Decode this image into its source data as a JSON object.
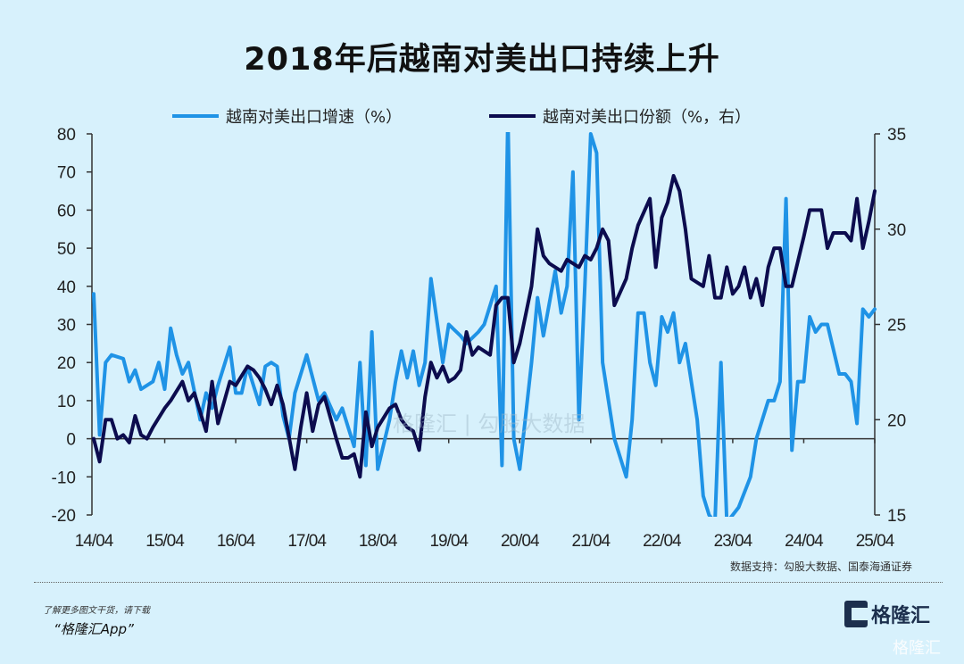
{
  "chart_data": {
    "type": "line",
    "title": "2018年后越南对美出口持续上升",
    "x_unit": "months since 2014/04",
    "x_ticks": [
      0,
      12,
      24,
      36,
      48,
      60,
      72,
      84,
      96,
      108,
      120,
      132
    ],
    "x_tick_labels": [
      "14/04",
      "15/04",
      "16/04",
      "17/04",
      "18/04",
      "19/04",
      "20/04",
      "21/04",
      "22/04",
      "23/04",
      "24/04",
      "25/04"
    ],
    "y_left": {
      "range": [
        -20,
        80
      ],
      "ticks": [
        -20,
        -10,
        0,
        10,
        20,
        30,
        40,
        50,
        60,
        70,
        80
      ]
    },
    "y_right": {
      "range": [
        15,
        35
      ],
      "ticks": [
        15,
        20,
        25,
        30,
        35
      ]
    },
    "legend_position": "top",
    "series": [
      {
        "name": "越南对美出口增速（%）",
        "axis": "left",
        "color": "#1f93e6",
        "points": [
          [
            0,
            38
          ],
          [
            1,
            1
          ],
          [
            2,
            20
          ],
          [
            3,
            22
          ],
          [
            5,
            21
          ],
          [
            6,
            15
          ],
          [
            7,
            18
          ],
          [
            8,
            13
          ],
          [
            10,
            15
          ],
          [
            11,
            20
          ],
          [
            12,
            13
          ],
          [
            13,
            29
          ],
          [
            14,
            22
          ],
          [
            15,
            17
          ],
          [
            16,
            20
          ],
          [
            18,
            5
          ],
          [
            19,
            12
          ],
          [
            20,
            8
          ],
          [
            21,
            14
          ],
          [
            23,
            24
          ],
          [
            24,
            12
          ],
          [
            25,
            12
          ],
          [
            26,
            19
          ],
          [
            28,
            9
          ],
          [
            29,
            19
          ],
          [
            30,
            20
          ],
          [
            31,
            19
          ],
          [
            32,
            6
          ],
          [
            33,
            0
          ],
          [
            34,
            12
          ],
          [
            36,
            22
          ],
          [
            38,
            10
          ],
          [
            39,
            12
          ],
          [
            41,
            5
          ],
          [
            42,
            8
          ],
          [
            44,
            -2
          ],
          [
            45,
            20
          ],
          [
            46,
            -7
          ],
          [
            47,
            28
          ],
          [
            48,
            -8
          ],
          [
            50,
            5
          ],
          [
            51,
            15
          ],
          [
            52,
            23
          ],
          [
            53,
            16
          ],
          [
            54,
            23
          ],
          [
            55,
            14
          ],
          [
            56,
            20
          ],
          [
            57,
            42
          ],
          [
            59,
            20
          ],
          [
            60,
            30
          ],
          [
            62,
            27
          ],
          [
            63,
            25
          ],
          [
            65,
            28
          ],
          [
            66,
            30
          ],
          [
            68,
            40
          ],
          [
            69,
            -7
          ],
          [
            70,
            85
          ],
          [
            71,
            0
          ],
          [
            72,
            -8
          ],
          [
            74,
            20
          ],
          [
            75,
            37
          ],
          [
            76,
            27
          ],
          [
            78,
            44
          ],
          [
            79,
            33
          ],
          [
            80,
            40
          ],
          [
            81,
            70
          ],
          [
            82,
            5
          ],
          [
            83,
            40
          ],
          [
            84,
            80
          ],
          [
            85,
            75
          ],
          [
            86,
            20
          ],
          [
            88,
            0
          ],
          [
            90,
            -10
          ],
          [
            91,
            5
          ],
          [
            92,
            33
          ],
          [
            93,
            33
          ],
          [
            94,
            20
          ],
          [
            95,
            14
          ],
          [
            96,
            32
          ],
          [
            97,
            28
          ],
          [
            98,
            33
          ],
          [
            99,
            20
          ],
          [
            100,
            25
          ],
          [
            102,
            5
          ],
          [
            103,
            -15
          ],
          [
            104,
            -20
          ],
          [
            105,
            -22
          ],
          [
            106,
            20
          ],
          [
            107,
            -22
          ],
          [
            108,
            -20
          ],
          [
            109,
            -18
          ],
          [
            111,
            -10
          ],
          [
            112,
            0
          ],
          [
            114,
            10
          ],
          [
            115,
            10
          ],
          [
            116,
            15
          ],
          [
            117,
            63
          ],
          [
            118,
            -3
          ],
          [
            119,
            15
          ],
          [
            120,
            15
          ],
          [
            121,
            32
          ],
          [
            122,
            28
          ],
          [
            123,
            30
          ],
          [
            124,
            30
          ],
          [
            126,
            17
          ],
          [
            127,
            17
          ],
          [
            128,
            15
          ],
          [
            129,
            4
          ],
          [
            130,
            34
          ],
          [
            131,
            32
          ],
          [
            132,
            34
          ]
        ]
      },
      {
        "name": "越南对美出口份额（%，右）",
        "axis": "right",
        "color": "#0c0c4e",
        "points": [
          [
            0,
            19
          ],
          [
            1,
            17.8
          ],
          [
            2,
            20
          ],
          [
            3,
            20
          ],
          [
            4,
            19
          ],
          [
            5,
            19.2
          ],
          [
            6,
            18.8
          ],
          [
            7,
            20.2
          ],
          [
            8,
            19.2
          ],
          [
            9,
            19
          ],
          [
            10,
            19.6
          ],
          [
            12,
            20.6
          ],
          [
            13,
            21
          ],
          [
            15,
            22
          ],
          [
            16,
            21
          ],
          [
            17,
            21.4
          ],
          [
            18,
            20.4
          ],
          [
            19,
            19.4
          ],
          [
            20,
            22
          ],
          [
            21,
            19.8
          ],
          [
            23,
            22
          ],
          [
            24,
            21.8
          ],
          [
            26,
            22.8
          ],
          [
            27,
            22.6
          ],
          [
            28,
            22.2
          ],
          [
            29,
            21.6
          ],
          [
            30,
            20.8
          ],
          [
            31,
            21.8
          ],
          [
            32,
            20.8
          ],
          [
            34,
            17.4
          ],
          [
            35,
            19.6
          ],
          [
            36,
            21.4
          ],
          [
            37,
            19.4
          ],
          [
            38,
            20.8
          ],
          [
            39,
            21.2
          ],
          [
            41,
            19
          ],
          [
            42,
            18
          ],
          [
            43,
            18
          ],
          [
            44,
            18.2
          ],
          [
            45,
            17
          ],
          [
            46,
            20.4
          ],
          [
            47,
            18.6
          ],
          [
            48,
            19.6
          ],
          [
            50,
            20.6
          ],
          [
            51,
            20.8
          ],
          [
            52,
            20
          ],
          [
            53,
            19.6
          ],
          [
            54,
            19.4
          ],
          [
            55,
            18.4
          ],
          [
            56,
            21.2
          ],
          [
            57,
            23
          ],
          [
            58,
            22.2
          ],
          [
            59,
            22.8
          ],
          [
            60,
            22
          ],
          [
            61,
            22.2
          ],
          [
            62,
            22.6
          ],
          [
            63,
            24.6
          ],
          [
            64,
            23.4
          ],
          [
            65,
            23.8
          ],
          [
            67,
            23.4
          ],
          [
            68,
            26
          ],
          [
            69,
            26.4
          ],
          [
            70,
            26.4
          ],
          [
            71,
            23
          ],
          [
            72,
            24
          ],
          [
            74,
            27
          ],
          [
            75,
            30
          ],
          [
            76,
            28.6
          ],
          [
            77,
            28.2
          ],
          [
            79,
            27.8
          ],
          [
            80,
            28.4
          ],
          [
            82,
            28
          ],
          [
            83,
            28.6
          ],
          [
            84,
            28.4
          ],
          [
            85,
            29
          ],
          [
            86,
            30
          ],
          [
            87,
            29.4
          ],
          [
            88,
            26
          ],
          [
            90,
            27.4
          ],
          [
            91,
            29
          ],
          [
            92,
            30.2
          ],
          [
            94,
            31.6
          ],
          [
            95,
            28
          ],
          [
            96,
            30.6
          ],
          [
            97,
            31.4
          ],
          [
            98,
            32.8
          ],
          [
            99,
            32
          ],
          [
            100,
            30
          ],
          [
            101,
            27.4
          ],
          [
            103,
            27
          ],
          [
            104,
            28.6
          ],
          [
            105,
            26.4
          ],
          [
            106,
            26.4
          ],
          [
            107,
            28
          ],
          [
            108,
            26.6
          ],
          [
            109,
            27
          ],
          [
            110,
            28
          ],
          [
            111,
            26.4
          ],
          [
            112,
            27.4
          ],
          [
            113,
            26
          ],
          [
            114,
            28
          ],
          [
            115,
            29
          ],
          [
            116,
            29
          ],
          [
            117,
            27
          ],
          [
            118,
            27
          ],
          [
            120,
            29.6
          ],
          [
            121,
            31
          ],
          [
            122,
            31
          ],
          [
            123,
            31
          ],
          [
            124,
            29
          ],
          [
            125,
            29.8
          ],
          [
            127,
            29.8
          ],
          [
            128,
            29.4
          ],
          [
            129,
            31.6
          ],
          [
            130,
            29
          ],
          [
            131,
            30.4
          ],
          [
            132,
            32
          ]
        ]
      }
    ],
    "source": "数据支持：勾股大数据、国泰海通证券"
  },
  "footer": {
    "promo_line1": "了解更多图文干货，请下载",
    "promo_line2": "“格隆汇App”",
    "logo_text": "格隆汇",
    "watermark": "格隆汇",
    "center_watermark": "格隆汇 | 勾股大数据"
  }
}
